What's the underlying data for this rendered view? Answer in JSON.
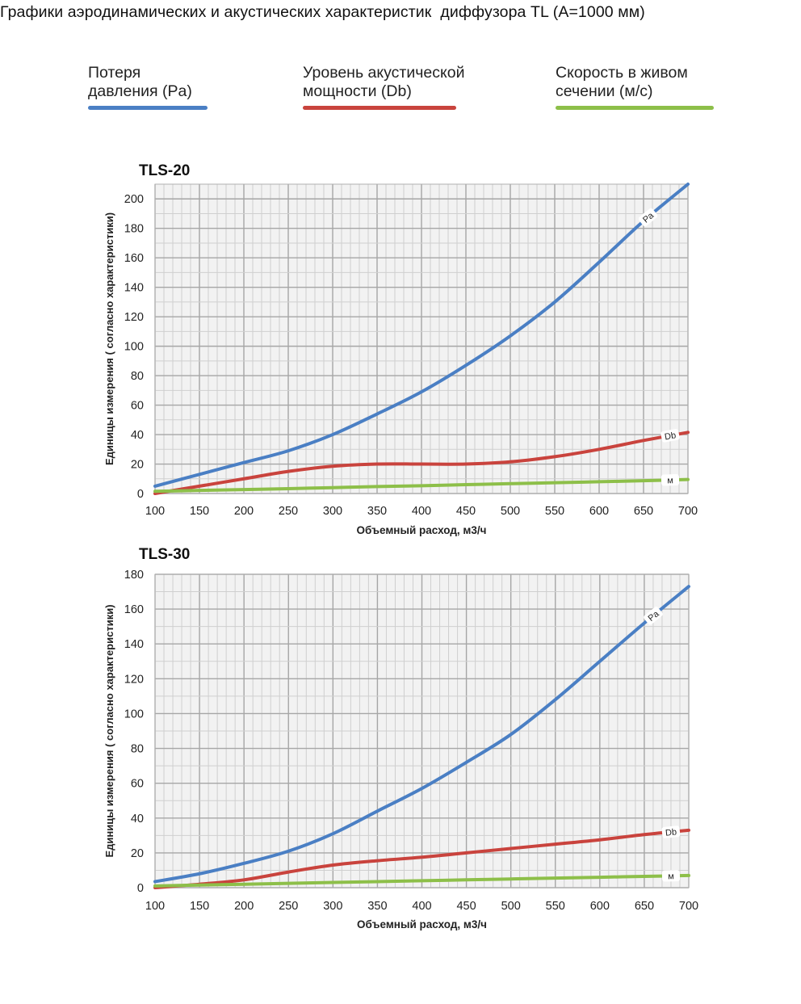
{
  "page_title": "Графики аэродинамических и акустических характеристик  диффузора TL (A=1000 мм)",
  "legend": [
    {
      "label": "Потеря\nдавления (Pa)",
      "color": "#4a7fc4"
    },
    {
      "label": "Уровень акустической\nмощности (Db)",
      "color": "#c9433d"
    },
    {
      "label": "Скорость в живом\nсечении (м/с)",
      "color": "#8dbf49"
    }
  ],
  "chart_data": [
    {
      "type": "line",
      "title": "TLS-20",
      "xlabel": "Объемный расход, м3/ч",
      "ylabel": "Единицы измерения ( согласно характеристики)",
      "xlim": [
        100,
        700
      ],
      "ylim": [
        0,
        210
      ],
      "xticks": [
        "100",
        "150",
        "200",
        "250",
        "300",
        "350",
        "400",
        "450",
        "500",
        "550",
        "600",
        "650",
        "700"
      ],
      "yticks": [
        "0",
        "20",
        "40",
        "60",
        "80",
        "100",
        "120",
        "140",
        "160",
        "180",
        "200"
      ],
      "grid": true,
      "x": [
        100,
        150,
        200,
        250,
        300,
        350,
        400,
        450,
        500,
        550,
        600,
        650,
        700
      ],
      "series": [
        {
          "name": "Pa",
          "color": "#4a7fc4",
          "label_x": 655,
          "values": [
            5,
            13,
            21,
            29,
            40,
            54,
            69,
            87,
            107,
            130,
            157,
            185,
            210
          ]
        },
        {
          "name": "Db",
          "color": "#c9433d",
          "label_x": 680,
          "values": [
            0,
            5,
            10,
            15,
            18.5,
            20,
            20,
            20,
            21.5,
            25,
            30,
            36,
            41.5
          ]
        },
        {
          "name": "м",
          "color": "#8dbf49",
          "label_x": 680,
          "values": [
            1.5,
            2.1,
            2.7,
            3.3,
            4,
            4.7,
            5.3,
            6,
            6.7,
            7.3,
            8,
            8.7,
            9.5
          ]
        }
      ]
    },
    {
      "type": "line",
      "title": "TLS-30",
      "xlabel": "Объемный расход, м3/ч",
      "ylabel": "Единицы измерения ( согласно характеристики)",
      "xlim": [
        100,
        700
      ],
      "ylim": [
        0,
        180
      ],
      "xticks": [
        "100",
        "150",
        "200",
        "250",
        "300",
        "350",
        "400",
        "450",
        "500",
        "550",
        "600",
        "650",
        "700"
      ],
      "yticks": [
        "0",
        "20",
        "40",
        "60",
        "80",
        "100",
        "120",
        "140",
        "160",
        "180"
      ],
      "grid": true,
      "x": [
        100,
        150,
        200,
        250,
        300,
        350,
        400,
        450,
        500,
        550,
        600,
        650,
        700
      ],
      "series": [
        {
          "name": "Pa",
          "color": "#4a7fc4",
          "label_x": 660,
          "values": [
            3.5,
            8,
            14,
            21,
            31,
            44,
            57,
            72,
            88,
            108,
            130,
            152,
            173
          ]
        },
        {
          "name": "Db",
          "color": "#c9433d",
          "label_x": 680,
          "values": [
            0,
            2,
            4.5,
            9,
            13,
            15.5,
            17.5,
            20,
            22.5,
            25,
            27.5,
            30.5,
            33
          ]
        },
        {
          "name": "м",
          "color": "#8dbf49",
          "label_x": 680,
          "values": [
            1,
            1.5,
            2,
            2.5,
            3,
            3.5,
            4,
            4.5,
            5,
            5.5,
            6,
            6.5,
            7
          ]
        }
      ]
    }
  ]
}
